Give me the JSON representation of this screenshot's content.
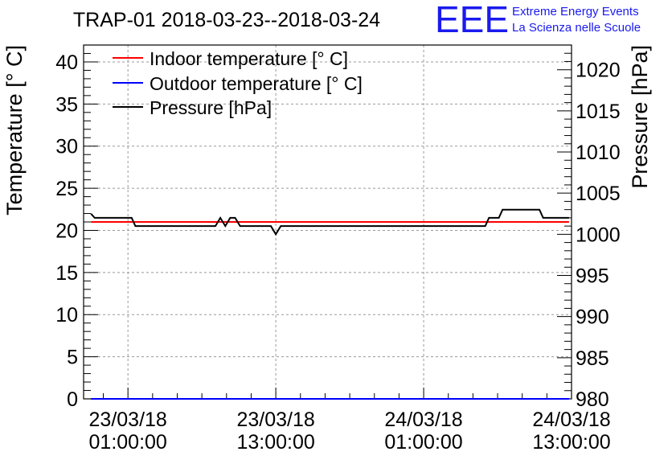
{
  "chart_data": {
    "type": "line",
    "title": "TRAP-01 2018-03-23--2018-03-24",
    "logo": {
      "text": "EEE",
      "line1": "Extreme Energy Events",
      "line2": "La Scienza nelle Scuole",
      "color": "#1a1aee"
    },
    "ylabel": "Temperature [° C]",
    "y2label": "Pressure [hPa]",
    "ylim": [
      0,
      42
    ],
    "y2lim": [
      980,
      1023
    ],
    "xlim": [
      -3.6,
      36
    ],
    "yticks": [
      "0",
      "5",
      "10",
      "15",
      "20",
      "25",
      "30",
      "35",
      "40"
    ],
    "y2ticks": [
      "980",
      "985",
      "990",
      "995",
      "1000",
      "1005",
      "1010",
      "1015",
      "1020"
    ],
    "xticks": [
      {
        "x": 0,
        "line1": "23/03/18",
        "line2": "01:00:00"
      },
      {
        "x": 12,
        "line1": "23/03/18",
        "line2": "13:00:00"
      },
      {
        "x": 24,
        "line1": "24/03/18",
        "line2": "01:00:00"
      },
      {
        "x": 36,
        "line1": "24/03/18",
        "line2": "13:00:00"
      }
    ],
    "legend": [
      {
        "label": "Indoor temperature [° C]",
        "color": "#ff0000"
      },
      {
        "label": "Outdoor temperature [° C]",
        "color": "#0000ff"
      },
      {
        "label": "Pressure [hPa]",
        "color": "#000000"
      }
    ],
    "series": [
      {
        "name": "Indoor temperature [° C]",
        "axis": "left",
        "color": "#ff0000",
        "x": [
          -3,
          35.8
        ],
        "y": [
          21,
          21
        ]
      },
      {
        "name": "Outdoor temperature [° C]",
        "axis": "left",
        "color": "#0000ff",
        "x": [
          -3,
          35.8
        ],
        "y": [
          0,
          0
        ]
      },
      {
        "name": "Pressure [hPa]",
        "axis": "right",
        "color": "#000000",
        "x": [
          -3,
          -2.7,
          0.3,
          0.6,
          7.1,
          7.5,
          7.9,
          8.3,
          8.7,
          9.1,
          11.6,
          12.0,
          12.4,
          29.0,
          29.3,
          30.1,
          30.4,
          33.4,
          33.7,
          35.8
        ],
        "y": [
          1002.5,
          1002.0,
          1002.0,
          1001.0,
          1001.0,
          1002.0,
          1001.0,
          1002.0,
          1002.0,
          1001.0,
          1001.0,
          1000.0,
          1001.0,
          1001.0,
          1002.0,
          1002.0,
          1003.0,
          1003.0,
          1002.0,
          1002.0
        ]
      }
    ]
  }
}
